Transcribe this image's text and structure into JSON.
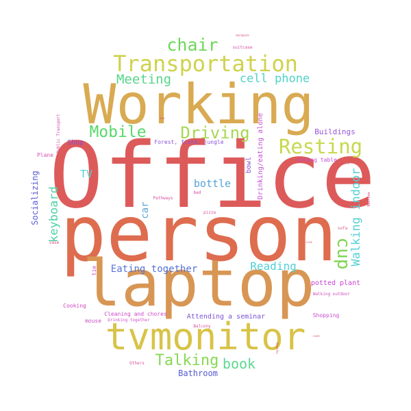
{
  "words": [
    {
      "text": "Office",
      "color": "#dd5a5a"
    },
    {
      "text": "person",
      "color": "#de6c4f"
    },
    {
      "text": "Working",
      "color": "#d9aa52"
    },
    {
      "text": "laptop",
      "color": "#d89654"
    },
    {
      "text": "tvmonitor",
      "color": "#d8c348"
    },
    {
      "text": "Transportation",
      "color": "#cfd24d"
    },
    {
      "text": "chair",
      "color": "#6dd85a"
    },
    {
      "text": "Resting",
      "color": "#c7d84b"
    },
    {
      "text": "Driving",
      "color": "#a6d850"
    },
    {
      "text": "Mobile",
      "color": "#58d86a"
    },
    {
      "text": "Meeting",
      "color": "#58d58a"
    },
    {
      "text": "cell phone",
      "color": "#4fd2c9"
    },
    {
      "text": "Talking",
      "color": "#86d854"
    },
    {
      "text": "book",
      "color": "#5bd890"
    },
    {
      "text": "cup",
      "color": "#80d456"
    },
    {
      "text": "Walking indoor",
      "color": "#54d0d3"
    },
    {
      "text": "keyboard",
      "color": "#4ed2a3"
    },
    {
      "text": "bottle",
      "color": "#55a2d8"
    },
    {
      "text": "Reading",
      "color": "#4fd0d6"
    },
    {
      "text": "Eating together",
      "color": "#5673d8"
    },
    {
      "text": "TV",
      "color": "#52d3d3"
    },
    {
      "text": "car",
      "color": "#5ea3d5"
    },
    {
      "text": "Socializing",
      "color": "#5a5bd6"
    },
    {
      "text": "Buildings",
      "color": "#9a54d8"
    },
    {
      "text": "Shop",
      "color": "#8b4ad3"
    },
    {
      "text": "Bathroom",
      "color": "#5558d0"
    },
    {
      "text": "Attending a seminar",
      "color": "#7b52d4"
    },
    {
      "text": "potted plant",
      "color": "#c542d2"
    },
    {
      "text": "Drinking/eating alone",
      "color": "#c24fd4"
    },
    {
      "text": "bowl",
      "color": "#8b53d4"
    },
    {
      "text": "Forest, field, jungle",
      "color": "#8a52d8"
    },
    {
      "text": "dining table",
      "color": "#c44bd2"
    },
    {
      "text": "Plane",
      "color": "#d34fb2"
    },
    {
      "text": "Public Transport",
      "color": "#d04aa9"
    },
    {
      "text": "Cooking",
      "color": "#cf47bb"
    },
    {
      "text": "Cleaning and chores",
      "color": "#cc46c8"
    },
    {
      "text": "Drinking together",
      "color": "#d150c5"
    },
    {
      "text": "mouse",
      "color": "#c94ec2"
    },
    {
      "text": "tie",
      "color": "#c945c5"
    },
    {
      "text": "Shopping",
      "color": "#c84acb"
    },
    {
      "text": "Walking outdoor",
      "color": "#cf4ab9"
    },
    {
      "text": "Balcony",
      "color": "#d74c9a"
    },
    {
      "text": "Others",
      "color": "#d8549a"
    },
    {
      "text": "suitcase",
      "color": "#d34aa6"
    },
    {
      "text": "Pathways",
      "color": "#d54c9f"
    },
    {
      "text": "bed",
      "color": "#d64aa0"
    },
    {
      "text": "pizza",
      "color": "#d94e98"
    },
    {
      "text": "sofa",
      "color": "#d85a8a"
    },
    {
      "text": "vase",
      "color": "#db4d86"
    },
    {
      "text": "Bedroom",
      "color": "#d85287"
    },
    {
      "text": "backpack",
      "color": "#dc4f7d"
    },
    {
      "text": "bus",
      "color": "#dd4f75"
    },
    {
      "text": "remote",
      "color": "#db4f6e"
    },
    {
      "text": "sink",
      "color": "#dc5c6d"
    },
    {
      "text": "oven",
      "color": "#dd5363"
    },
    {
      "text": "handbag",
      "color": "#da5b67"
    }
  ]
}
